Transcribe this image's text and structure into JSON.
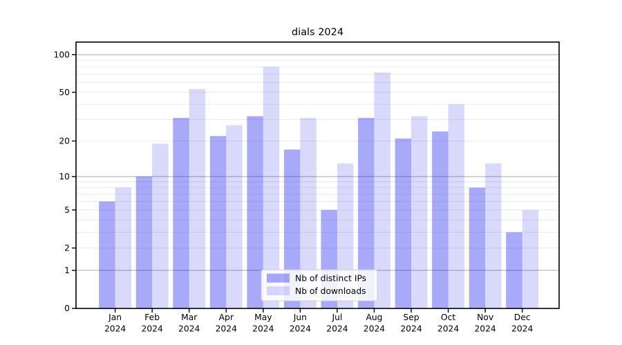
{
  "chart_data": {
    "type": "bar",
    "title": "dials 2024",
    "months": [
      "Jan",
      "Feb",
      "Mar",
      "Apr",
      "May",
      "Jun",
      "Jul",
      "Aug",
      "Sep",
      "Oct",
      "Nov",
      "Dec"
    ],
    "year_label": "2024",
    "series": [
      {
        "name": "Nb of distinct IPs",
        "color": "rgba(30,30,240,0.38)",
        "values": [
          6,
          10,
          31,
          22,
          32,
          17,
          5,
          31,
          21,
          24,
          8,
          3
        ]
      },
      {
        "name": "Nb of downloads",
        "color": "rgba(30,30,240,0.17)",
        "values": [
          8,
          19,
          53,
          27,
          80,
          31,
          13,
          72,
          32,
          40,
          13,
          5
        ]
      }
    ],
    "y_axis": {
      "scale": "log1p",
      "tick_labels": [
        "0",
        "1",
        "2",
        "5",
        "10",
        "20",
        "50",
        "100"
      ],
      "tick_values": [
        0,
        1,
        2,
        5,
        10,
        20,
        50,
        100
      ],
      "major_gridlines": [
        1,
        10,
        100
      ],
      "minor_gridlines": [
        2,
        3,
        4,
        5,
        6,
        7,
        8,
        9,
        20,
        30,
        40,
        50,
        60,
        70,
        80,
        90
      ],
      "min": 0,
      "max": 126
    },
    "legend": {
      "entries": [
        "Nb of distinct IPs",
        "Nb of downloads"
      ],
      "position": "lower-center"
    },
    "grid": true,
    "colors": {
      "background": "#ffffff",
      "spine": "#000000",
      "major_grid": "#a9a9a9",
      "minor_grid": "#e9e9e9",
      "text": "#000000",
      "legend_border": "#cfcfcf",
      "legend_background": "rgba(255,255,255,0.85)"
    }
  }
}
